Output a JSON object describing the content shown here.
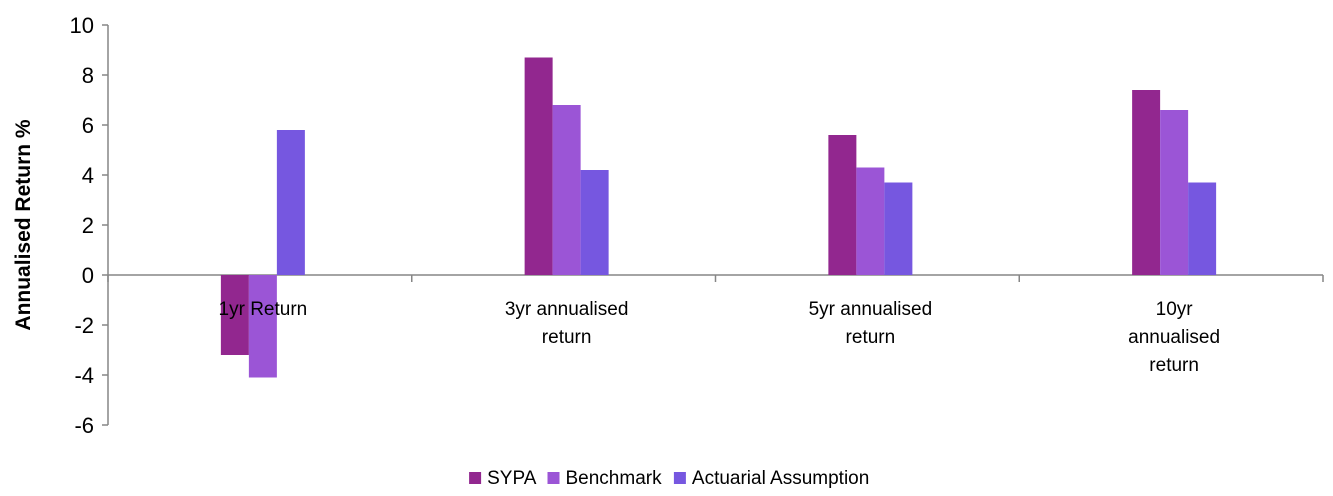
{
  "chart_data": {
    "type": "bar",
    "title": "",
    "xlabel": "",
    "ylabel": "Annualised Return %",
    "ylim": [
      -6,
      10
    ],
    "yticks": [
      -6,
      -4,
      -2,
      0,
      2,
      4,
      6,
      8,
      10
    ],
    "categories": [
      [
        "1yr Return"
      ],
      [
        "3yr annualised",
        "return"
      ],
      [
        "5yr annualised",
        "return"
      ],
      [
        "10yr",
        "annualised",
        "return"
      ]
    ],
    "series": [
      {
        "name": "SYPA",
        "color": "#92278F",
        "values": [
          -3.2,
          8.7,
          5.6,
          7.4
        ]
      },
      {
        "name": "Benchmark",
        "color": "#9B55D6",
        "values": [
          -4.1,
          6.8,
          4.3,
          6.6
        ]
      },
      {
        "name": "Actuarial Assumption",
        "color": "#7657E0",
        "values": [
          5.8,
          4.2,
          3.7,
          3.7
        ]
      }
    ],
    "grid": false,
    "legend_position": "bottom-center"
  }
}
